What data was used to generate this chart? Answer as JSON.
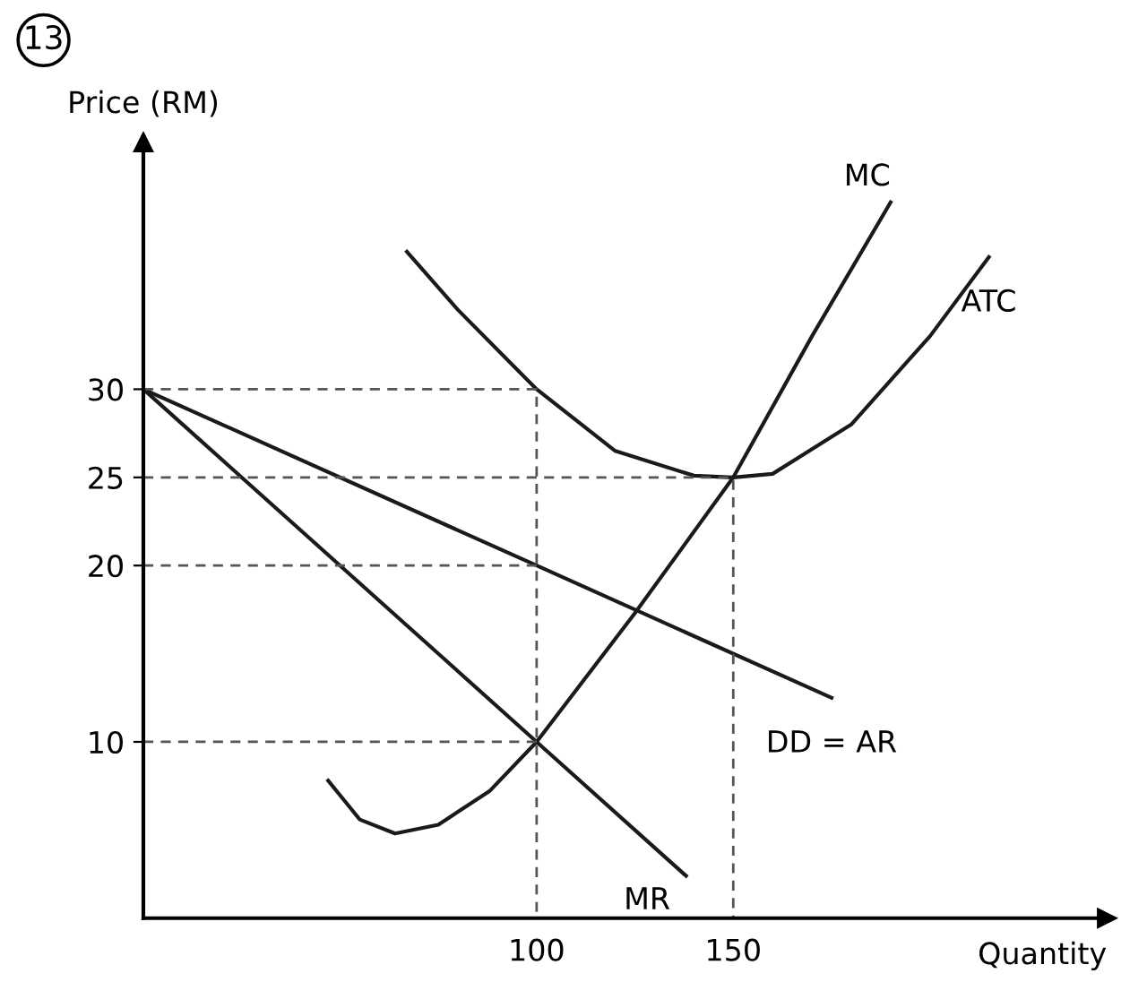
{
  "chart_data": {
    "type": "line",
    "xlabel": "Quantity",
    "ylabel": "Price (RM)",
    "annotations": [
      "13"
    ],
    "xlim": [
      0,
      245
    ],
    "ylim": [
      0,
      44
    ],
    "xticks": [
      100,
      150
    ],
    "yticks": [
      10,
      20,
      25,
      30
    ],
    "grid": false,
    "legend": false,
    "marker": "none",
    "series": [
      {
        "name": "MC",
        "color": "#1a1a1a",
        "x": [
          47,
          55,
          64,
          75,
          88,
          100,
          125,
          150,
          170,
          190
        ],
        "values": [
          7.8,
          5.6,
          4.8,
          5.3,
          7.2,
          10,
          17.3,
          25,
          33,
          40.6
        ]
      },
      {
        "name": "ATC",
        "color": "#1a1a1a",
        "x": [
          67,
          80,
          100,
          120,
          140,
          150,
          160,
          180,
          200,
          215
        ],
        "values": [
          37.8,
          34.5,
          30,
          26.5,
          25.1,
          25,
          25.2,
          28,
          33,
          37.5
        ]
      },
      {
        "name": "DD = AR",
        "color": "#1a1a1a",
        "x": [
          0,
          100,
          175
        ],
        "values": [
          30,
          20,
          12.5
        ]
      },
      {
        "name": "MR",
        "color": "#1a1a1a",
        "x": [
          0,
          100,
          138
        ],
        "values": [
          30,
          10,
          2.4
        ]
      },
      {
        "color": "#555555",
        "line_style": "dashed",
        "x": [
          0,
          100,
          100
        ],
        "values": [
          30,
          30,
          0
        ]
      },
      {
        "color": "#555555",
        "line_style": "dashed",
        "x": [
          0,
          150,
          150
        ],
        "values": [
          25,
          25,
          0
        ]
      },
      {
        "color": "#555555",
        "line_style": "dashed",
        "x": [
          0,
          100
        ],
        "values": [
          20,
          20
        ]
      },
      {
        "color": "#555555",
        "line_style": "dashed",
        "x": [
          0,
          100
        ],
        "values": [
          10,
          10
        ]
      }
    ]
  }
}
